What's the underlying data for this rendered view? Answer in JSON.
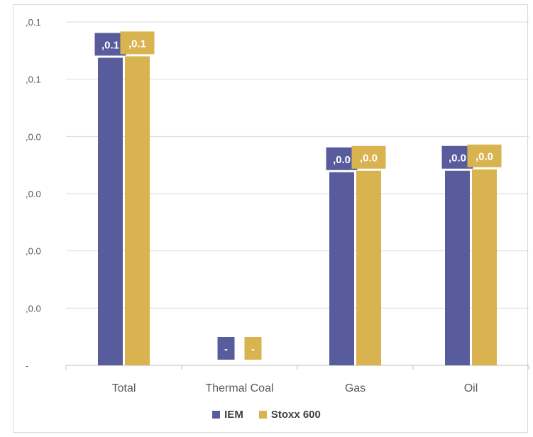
{
  "chart_data": {
    "type": "bar",
    "categories": [
      "Total",
      "Thermal Coal",
      "Gas",
      "Oil"
    ],
    "y_tick_labels": [
      "-",
      ",0.0",
      ",0.0",
      ",0.0",
      ",0.0",
      ",0.1",
      ",0.1"
    ],
    "ylim": [
      0,
      0.12
    ],
    "grid": true,
    "legend_position": "bottom",
    "series": [
      {
        "name": "IEM",
        "color": "#595c9c",
        "values": [
          0.1075,
          0,
          0.0675,
          0.068
        ],
        "data_labels": [
          ",0.1",
          "-",
          ",0.0",
          ",0.0"
        ]
      },
      {
        "name": "Stoxx 600",
        "color": "#d9b350",
        "values": [
          0.108,
          0,
          0.068,
          0.0685
        ],
        "data_labels": [
          ",0.1",
          "-",
          ",0.0",
          ",0.0"
        ]
      }
    ]
  }
}
